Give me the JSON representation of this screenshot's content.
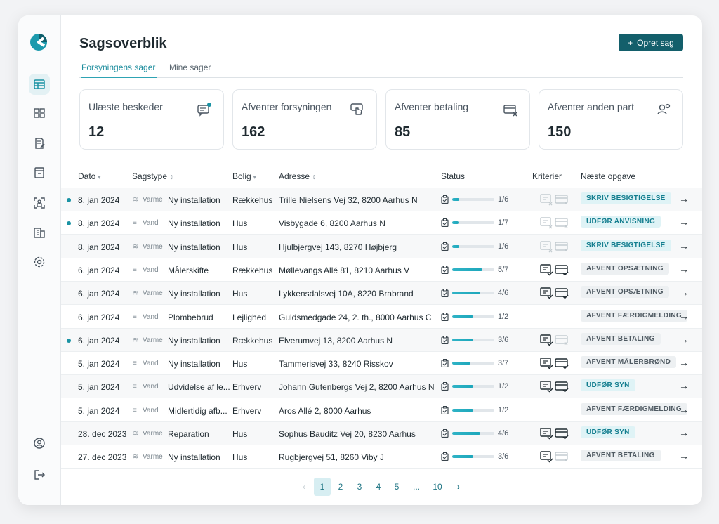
{
  "app": {
    "logo": "app-logo"
  },
  "sidebar": {
    "items": [
      {
        "icon": "table-icon",
        "active": true
      },
      {
        "icon": "dashboard-icon",
        "active": false
      },
      {
        "icon": "document-edit-icon",
        "active": false
      },
      {
        "icon": "archive-icon",
        "active": false
      },
      {
        "icon": "scan-user-icon",
        "active": false
      },
      {
        "icon": "building-icon",
        "active": false
      },
      {
        "icon": "gear-icon",
        "active": false
      }
    ],
    "bottom": [
      {
        "icon": "user-circle-icon"
      },
      {
        "icon": "logout-icon"
      }
    ]
  },
  "header": {
    "title": "Sagsoverblik",
    "create_label": "Opret sag",
    "create_prefix": "+"
  },
  "tabs": [
    {
      "label": "Forsyningens sager",
      "active": true
    },
    {
      "label": "Mine sager",
      "active": false
    }
  ],
  "cards": [
    {
      "label": "Ulæste beskeder",
      "value": "12",
      "icon": "message-icon"
    },
    {
      "label": "Afventer forsyningen",
      "value": "162",
      "icon": "hand-pointer-icon"
    },
    {
      "label": "Afventer betaling",
      "value": "85",
      "icon": "payment-icon"
    },
    {
      "label": "Afventer anden part",
      "value": "150",
      "icon": "users-icon"
    }
  ],
  "columns": {
    "date": "Dato",
    "type": "Sagstype",
    "housing": "Bolig",
    "address": "Adresse",
    "status": "Status",
    "criteria": "Kriterier",
    "next": "Næste opgave"
  },
  "rows": [
    {
      "unread": true,
      "date": "8. jan 2024",
      "utility_icon": "≋",
      "utility": "Varme",
      "type": "Ny installation",
      "housing": "Rækkehus",
      "address": "Trille Nielsens Vej 32, 8200 Aarhus N",
      "progress": 0.1667,
      "status": "1/6",
      "crit1": "faded",
      "crit2": "faded",
      "next": "SKRIV BESIGTIGELSE",
      "next_style": "teal"
    },
    {
      "unread": true,
      "date": "8. jan 2024",
      "utility_icon": "≡",
      "utility": "Vand",
      "type": "Ny installation",
      "housing": "Hus",
      "address": "Visbygade 6, 8200 Aarhus N",
      "progress": 0.1429,
      "status": "1/7",
      "crit1": "faded",
      "crit2": "faded",
      "next": "UDFØR ANVISNING",
      "next_style": "teal"
    },
    {
      "unread": false,
      "date": "8. jan 2024",
      "utility_icon": "≋",
      "utility": "Varme",
      "type": "Ny installation",
      "housing": "Hus",
      "address": "Hjulbjergvej 143, 8270 Højbjerg",
      "progress": 0.1667,
      "status": "1/6",
      "crit1": "faded",
      "crit2": "faded",
      "next": "SKRIV BESIGTIGELSE",
      "next_style": "teal"
    },
    {
      "unread": false,
      "date": "6. jan 2024",
      "utility_icon": "≡",
      "utility": "Vand",
      "type": "Målerskifte",
      "housing": "Rækkehus",
      "address": "Møllevangs Allé 81, 8210 Aarhus V",
      "progress": 0.7143,
      "status": "5/7",
      "crit1": "solid",
      "crit2": "solid",
      "next": "AFVENT OPSÆTNING",
      "next_style": "grey"
    },
    {
      "unread": false,
      "date": "6. jan 2024",
      "utility_icon": "≋",
      "utility": "Varme",
      "type": "Ny installation",
      "housing": "Hus",
      "address": "Lykkensdalsvej 10A, 8220 Brabrand",
      "progress": 0.6667,
      "status": "4/6",
      "crit1": "solid",
      "crit2": "solid",
      "next": "AFVENT OPSÆTNING",
      "next_style": "grey"
    },
    {
      "unread": false,
      "date": "6. jan 2024",
      "utility_icon": "≡",
      "utility": "Vand",
      "type": "Plombebrud",
      "housing": "Lejlighed",
      "address": "Guldsmedgade 24, 2. th., 8000 Aarhus C",
      "progress": 0.5,
      "status": "1/2",
      "crit1": "none",
      "crit2": "none",
      "next": "AFVENT FÆRDIGMELDING",
      "next_style": "grey"
    },
    {
      "unread": true,
      "date": "6. jan 2024",
      "utility_icon": "≋",
      "utility": "Varme",
      "type": "Ny installation",
      "housing": "Rækkehus",
      "address": "Elverumvej 13, 8200 Aarhus N",
      "progress": 0.5,
      "status": "3/6",
      "crit1": "solid",
      "crit2": "faded",
      "next": "AFVENT BETALING",
      "next_style": "grey"
    },
    {
      "unread": false,
      "date": "5. jan 2024",
      "utility_icon": "≡",
      "utility": "Vand",
      "type": "Ny installation",
      "housing": "Hus",
      "address": "Tammerisvej 33, 8240 Risskov",
      "progress": 0.4286,
      "status": "3/7",
      "crit1": "solid",
      "crit2": "solid",
      "next": "AFVENT MÅLERBRØND",
      "next_style": "grey"
    },
    {
      "unread": false,
      "date": "5. jan 2024",
      "utility_icon": "≡",
      "utility": "Vand",
      "type": "Udvidelse af le...",
      "housing": "Erhverv",
      "address": "Johann Gutenbergs Vej 2, 8200 Aarhus N",
      "progress": 0.5,
      "status": "1/2",
      "crit1": "solid",
      "crit2": "solid",
      "next": "UDFØR SYN",
      "next_style": "teal"
    },
    {
      "unread": false,
      "date": "5. jan 2024",
      "utility_icon": "≡",
      "utility": "Vand",
      "type": "Midlertidig afb...",
      "housing": "Erhverv",
      "address": "Aros Allé 2, 8000 Aarhus",
      "progress": 0.5,
      "status": "1/2",
      "crit1": "none",
      "crit2": "none",
      "next": "AFVENT FÆRDIGMELDING",
      "next_style": "grey"
    },
    {
      "unread": false,
      "date": "28. dec 2023",
      "utility_icon": "≋",
      "utility": "Varme",
      "type": "Reparation",
      "housing": "Hus",
      "address": "Sophus Bauditz Vej 20, 8230 Aarhus",
      "progress": 0.6667,
      "status": "4/6",
      "crit1": "solid",
      "crit2": "solid",
      "next": "UDFØR SYN",
      "next_style": "teal"
    },
    {
      "unread": false,
      "date": "27. dec 2023",
      "utility_icon": "≋",
      "utility": "Varme",
      "type": "Ny installation",
      "housing": "Hus",
      "address": "Rugbjergvej 51, 8260 Viby J",
      "progress": 0.5,
      "status": "3/6",
      "crit1": "solid",
      "crit2": "faded",
      "next": "AFVENT BETALING",
      "next_style": "grey"
    }
  ],
  "pagination": {
    "prev": "‹",
    "pages": [
      "1",
      "2",
      "3",
      "4",
      "5",
      "...",
      "10"
    ],
    "current": "1",
    "next": "›"
  },
  "colors": {
    "accent": "#135f6b",
    "teal": "#2ea3b3",
    "unread": "#1a93a4"
  }
}
